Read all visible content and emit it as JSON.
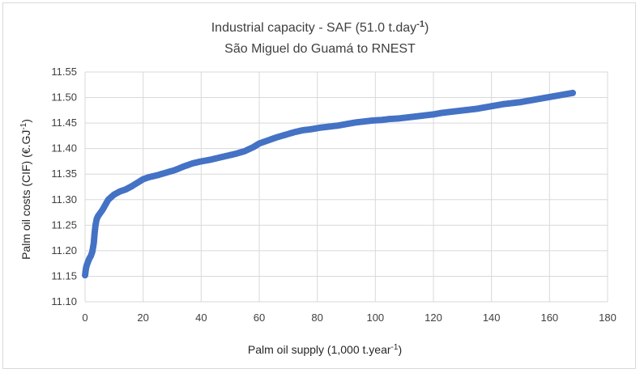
{
  "chart_data": {
    "type": "scatter",
    "title_line1": "Industrial capacity - SAF (51.0 t.day",
    "title_line1_sup": "-1",
    "title_line1_end": ")",
    "title_line2": "São Miguel do Guamá to RNEST",
    "xlabel": "Palm oil supply (1,000 t.year",
    "xlabel_sup": "-1",
    "xlabel_end": ")",
    "ylabel": "Palm oil costs (CIF) (€.GJ",
    "ylabel_sup": "-1",
    "ylabel_end": ")",
    "xlim": [
      0,
      180
    ],
    "ylim": [
      11.1,
      11.55
    ],
    "x_ticks": [
      "0",
      "20",
      "40",
      "60",
      "80",
      "100",
      "120",
      "140",
      "160",
      "180"
    ],
    "y_ticks": [
      "11.10",
      "11.15",
      "11.20",
      "11.25",
      "11.30",
      "11.35",
      "11.40",
      "11.45",
      "11.50",
      "11.55"
    ],
    "grid": true,
    "marker_color": "#4472c4",
    "series": [
      {
        "x": [
          0,
          0.3,
          0.6,
          1,
          1.5,
          2,
          2.5,
          3,
          3.3,
          3.6,
          4,
          4.5,
          5,
          6,
          7,
          8,
          9,
          10,
          12,
          14,
          16,
          18,
          20,
          22,
          25,
          28,
          31,
          34,
          37,
          40,
          43,
          46,
          49,
          52,
          55,
          58,
          60,
          63,
          66,
          69,
          72,
          75,
          78,
          81,
          84,
          87,
          90,
          93,
          96,
          99,
          102,
          105,
          108,
          111,
          114,
          117,
          120,
          123,
          126,
          129,
          132,
          135,
          138,
          141,
          144,
          147,
          150,
          153,
          156,
          159,
          162,
          165,
          168
        ],
        "y": [
          11.152,
          11.165,
          11.172,
          11.178,
          11.185,
          11.19,
          11.198,
          11.215,
          11.235,
          11.25,
          11.262,
          11.268,
          11.272,
          11.28,
          11.29,
          11.3,
          11.305,
          11.31,
          11.316,
          11.32,
          11.326,
          11.333,
          11.34,
          11.344,
          11.348,
          11.353,
          11.358,
          11.365,
          11.371,
          11.375,
          11.378,
          11.382,
          11.386,
          11.39,
          11.395,
          11.403,
          11.41,
          11.416,
          11.422,
          11.427,
          11.432,
          11.436,
          11.438,
          11.441,
          11.443,
          11.445,
          11.448,
          11.451,
          11.453,
          11.455,
          11.456,
          11.458,
          11.459,
          11.461,
          11.463,
          11.465,
          11.467,
          11.47,
          11.472,
          11.474,
          11.476,
          11.478,
          11.481,
          11.484,
          11.487,
          11.489,
          11.491,
          11.494,
          11.497,
          11.5,
          11.503,
          11.506,
          11.509
        ]
      }
    ]
  }
}
